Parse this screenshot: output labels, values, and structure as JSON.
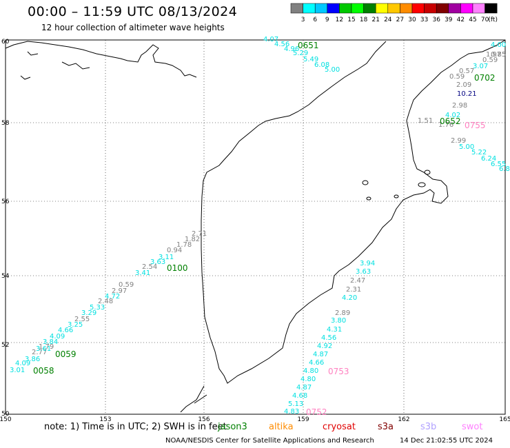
{
  "header": {
    "title": "00:00 – 11:59 UTC 08/13/2024",
    "subtitle": "12 hour collection of altimeter wave heights"
  },
  "legend": {
    "unit": "(ft)",
    "bins": [
      {
        "label": "3",
        "color": "#808080"
      },
      {
        "label": "6",
        "color": "#00ffff"
      },
      {
        "label": "9",
        "color": "#00c8ff"
      },
      {
        "label": "12",
        "color": "#0000ff"
      },
      {
        "label": "15",
        "color": "#00c800"
      },
      {
        "label": "18",
        "color": "#00ff00"
      },
      {
        "label": "21",
        "color": "#008000"
      },
      {
        "label": "24",
        "color": "#ffff00"
      },
      {
        "label": "27",
        "color": "#ffc800"
      },
      {
        "label": "30",
        "color": "#ff8c00"
      },
      {
        "label": "33",
        "color": "#ff0000"
      },
      {
        "label": "36",
        "color": "#c80000"
      },
      {
        "label": "39",
        "color": "#800000"
      },
      {
        "label": "42",
        "color": "#a000a0"
      },
      {
        "label": "45",
        "color": "#ff00ff"
      },
      {
        "label": "70",
        "color": "#ff80ff"
      },
      {
        "label": "",
        "color": "#000000"
      }
    ]
  },
  "axes": {
    "lon_ticks": [
      "150",
      "153",
      "156",
      "159",
      "162",
      "165"
    ],
    "lat_ticks": [
      "60",
      "58",
      "56",
      "54",
      "52",
      "50"
    ]
  },
  "tracks": [
    {
      "color": "#00e0e0",
      "points": [
        {
          "v": "4.07"
        },
        {
          "v": "4.56"
        },
        {
          "v": "4.96"
        },
        {
          "v": "5.29"
        },
        {
          "v": "5.49"
        },
        {
          "v": "6.08"
        },
        {
          "v": "5.00"
        }
      ]
    },
    {
      "color": "#808080",
      "points": [
        {
          "v": "1.97"
        },
        {
          "v": "0.85"
        },
        {
          "v": "0.59"
        },
        {
          "v": "0.57"
        },
        {
          "v": "0.59"
        },
        {
          "v": "2.09"
        },
        {
          "v": "2.98"
        },
        {
          "v": "1.51"
        }
      ]
    },
    {
      "color": "#00e0e0",
      "points": [
        {
          "v": "4.00"
        },
        {
          "v": "3.07"
        },
        {
          "v": "4.02"
        },
        {
          "v": "5.00"
        },
        {
          "v": "5.22"
        },
        {
          "v": "6.24"
        },
        {
          "v": "6.55"
        },
        {
          "v": "6.8"
        }
      ]
    },
    {
      "color": "#000080",
      "points": [
        {
          "v": "10.21"
        }
      ]
    },
    {
      "color": "#808080",
      "points": [
        {
          "v": "2.99"
        },
        {
          "v": "1.76"
        }
      ]
    },
    {
      "color": "#808080",
      "points": [
        {
          "v": "2.71"
        },
        {
          "v": "1.82"
        },
        {
          "v": "1.78"
        },
        {
          "v": "0.94"
        }
      ]
    },
    {
      "color": "#00e0e0",
      "points": [
        {
          "v": "3.11"
        },
        {
          "v": "3.63"
        },
        {
          "v": "3.41"
        }
      ]
    },
    {
      "color": "#808080",
      "points": [
        {
          "v": "2.54"
        },
        {
          "v": "0.59"
        },
        {
          "v": "2.97"
        },
        {
          "v": "2.48"
        },
        {
          "v": "2.55"
        },
        {
          "v": "1.79"
        },
        {
          "v": "2.77"
        }
      ]
    },
    {
      "color": "#00e0e0",
      "points": [
        {
          "v": "4.72"
        },
        {
          "v": "5.33"
        },
        {
          "v": "3.29"
        },
        {
          "v": "3.25"
        },
        {
          "v": "4.66"
        },
        {
          "v": "4.09"
        },
        {
          "v": "3.84"
        },
        {
          "v": "3.61"
        },
        {
          "v": "3.86"
        },
        {
          "v": "4.09"
        },
        {
          "v": "3.01"
        }
      ]
    },
    {
      "color": "#00e0e0",
      "points": [
        {
          "v": "3.94"
        },
        {
          "v": "3.63"
        },
        {
          "v": "4.20"
        },
        {
          "v": "3.80"
        },
        {
          "v": "4.31"
        },
        {
          "v": "4.56"
        },
        {
          "v": "4.92"
        },
        {
          "v": "4.87"
        },
        {
          "v": "4.66"
        },
        {
          "v": "4.80"
        },
        {
          "v": "4.80"
        },
        {
          "v": "4.87"
        },
        {
          "v": "4.68"
        },
        {
          "v": "5.13"
        },
        {
          "v": "4.83"
        }
      ]
    },
    {
      "color": "#808080",
      "points": [
        {
          "v": "2.47"
        },
        {
          "v": "2.31"
        },
        {
          "v": "2.89"
        }
      ]
    }
  ],
  "pass_times": [
    {
      "label": "0651",
      "color": "#008000"
    },
    {
      "label": "0702",
      "color": "#008000"
    },
    {
      "label": "0652",
      "color": "#008000"
    },
    {
      "label": "0755",
      "color": "#ff80c0"
    },
    {
      "label": "0100",
      "color": "#008000"
    },
    {
      "label": "0059",
      "color": "#008000"
    },
    {
      "label": "0058",
      "color": "#008000"
    },
    {
      "label": "0753",
      "color": "#ff80c0"
    },
    {
      "label": "0752",
      "color": "#ff80c0"
    }
  ],
  "footer": {
    "note": "note: 1) Time is in UTC; 2) SWH is in feet",
    "satellites": [
      {
        "name": "jason3",
        "color": "#008000"
      },
      {
        "name": "altika",
        "color": "#ff8c00"
      },
      {
        "name": "cryosat",
        "color": "#e00000"
      },
      {
        "name": "s3a",
        "color": "#800000"
      },
      {
        "name": "s3b",
        "color": "#b0a0ff"
      },
      {
        "name": "swot",
        "color": "#ff80ff"
      }
    ],
    "credit": "NOAA/NESDIS Center for Satellite Applications and Research",
    "timestamp": "14 Dec 21:02:55 UTC 2024"
  }
}
